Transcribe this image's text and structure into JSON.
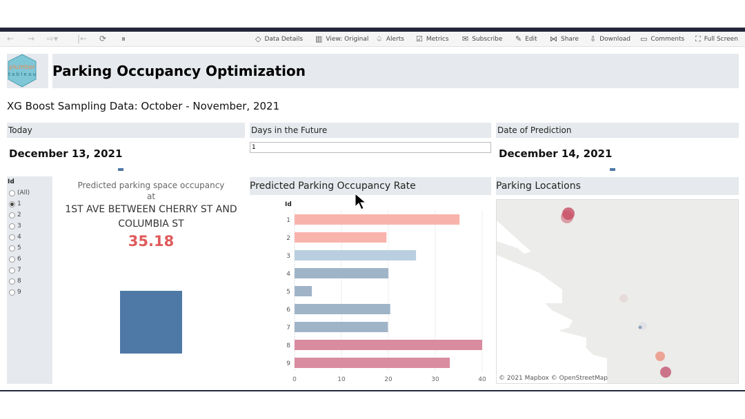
{
  "toolbar": {
    "items": [
      {
        "label": "Data Details",
        "icon": "tag-icon"
      },
      {
        "label": "View: Original",
        "icon": "view-icon"
      },
      {
        "label": "Alerts",
        "icon": "bell-icon"
      },
      {
        "label": "Metrics",
        "icon": "metrics-icon"
      },
      {
        "label": "Subscribe",
        "icon": "mail-icon"
      },
      {
        "label": "Edit",
        "icon": "pencil-icon"
      },
      {
        "label": "Share",
        "icon": "share-icon"
      },
      {
        "label": "Download",
        "icon": "download-icon"
      },
      {
        "label": "Comments",
        "icon": "comment-icon"
      },
      {
        "label": "Full Screen",
        "icon": "fullscreen-icon"
      }
    ]
  },
  "header": {
    "title": "Parking Occupancy Optimization",
    "logo_text_top": "plumber",
    "logo_text_bottom": "tableau"
  },
  "subtitle": "XG Boost Sampling Data: October - November, 2021",
  "today": {
    "label": "Today",
    "value": "December 13, 2021"
  },
  "days_future": {
    "label": "Days in the Future",
    "value": "1"
  },
  "prediction_date": {
    "label": "Date of Prediction",
    "value": "December 14, 2021"
  },
  "filter": {
    "label": "Id",
    "options": [
      "(All)",
      "1",
      "2",
      "3",
      "4",
      "5",
      "6",
      "7",
      "8",
      "9"
    ],
    "selected": "1"
  },
  "kpi": {
    "line1": "Predicted parking space occupancy",
    "line2": "at",
    "location": "1ST AVE BETWEEN CHERRY ST AND COLUMBIA ST",
    "value": "35.18",
    "value_color": "#e05a5a",
    "square_color": "#4e79a7"
  },
  "chart_title": "Predicted Parking Occupancy Rate",
  "map": {
    "title": "Parking Locations",
    "attribution": "© 2021 Mapbox  © OpenStreetMap"
  },
  "chart_data": {
    "type": "bar",
    "orientation": "horizontal",
    "ylabel": "Id",
    "categories": [
      "1",
      "2",
      "3",
      "4",
      "5",
      "6",
      "7",
      "8",
      "9"
    ],
    "values": [
      35.18,
      19.6,
      25.9,
      20.0,
      3.7,
      20.4,
      19.9,
      40.0,
      33.1
    ],
    "colors": [
      "#f8b3ad",
      "#f8b3ad",
      "#b9cfdf",
      "#a0b4c8",
      "#a0b4c8",
      "#a0b4c8",
      "#a0b4c8",
      "#d98ca0",
      "#d98ca0"
    ],
    "xlim": [
      0,
      40
    ],
    "xticks": [
      "0",
      "10",
      "20",
      "30",
      "40"
    ],
    "grid": true
  }
}
